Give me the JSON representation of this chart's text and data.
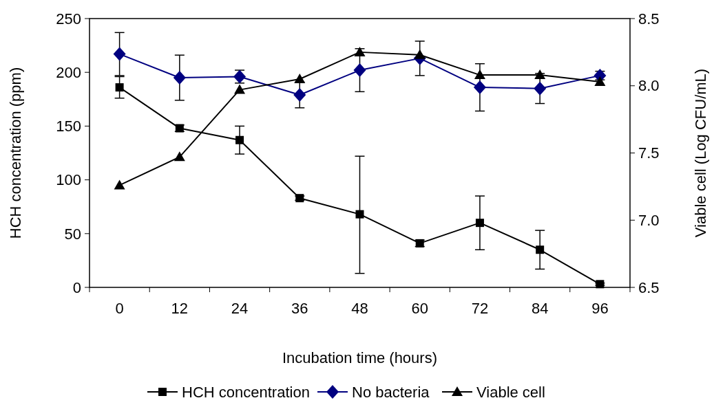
{
  "chart_data": {
    "type": "line",
    "xlabel": "Incubation time (hours)",
    "ylabel": "HCH concentration (ppm)",
    "y2label": "Viable cell (Log CFU/mL)",
    "categories": [
      "0",
      "12",
      "24",
      "36",
      "48",
      "60",
      "72",
      "84",
      "96"
    ],
    "ylim": [
      0,
      250
    ],
    "yticks": [
      0,
      50,
      100,
      150,
      200,
      250
    ],
    "y2lim": [
      6.5,
      8.5
    ],
    "y2ticks": [
      {
        "value": 6.5,
        "label": "6.5"
      },
      {
        "value": 7,
        "label": "7.0"
      },
      {
        "value": 7.5,
        "label": "7.5"
      },
      {
        "value": 8,
        "label": "8.0"
      },
      {
        "value": 8.5,
        "label": "8.5"
      }
    ],
    "grid": false,
    "legend": "bottom",
    "series": [
      {
        "name": "HCH concentration",
        "color": "#000000",
        "marker": "square",
        "values": [
          186,
          148,
          137,
          83,
          68,
          41,
          60,
          35,
          3
        ],
        "errors": [
          10,
          3,
          13,
          2,
          [
            13,
            122
          ],
          3,
          25,
          18,
          1
        ]
      },
      {
        "name": "No bacteria",
        "color": "#000080",
        "marker": "diamond",
        "values": [
          217,
          195,
          196,
          179,
          202,
          213,
          186,
          185,
          197
        ],
        "errors": [
          20,
          21,
          6,
          12,
          20,
          16,
          22,
          14,
          4
        ]
      },
      {
        "name": "Viable cell",
        "color": "#000000",
        "marker": "triangle",
        "axis": "y2",
        "values": [
          7.26,
          7.47,
          7.97,
          8.05,
          8.25,
          8.23,
          8.08,
          8.08,
          8.03
        ]
      }
    ]
  }
}
